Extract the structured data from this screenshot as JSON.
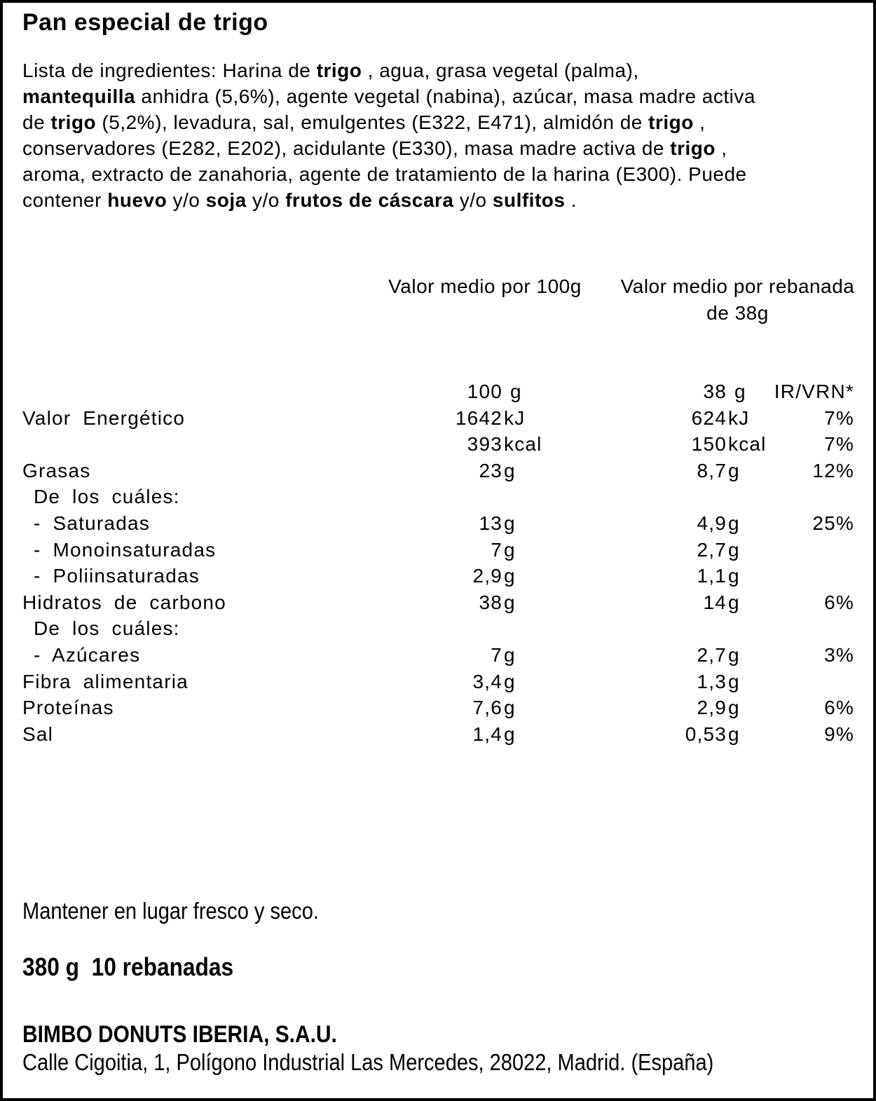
{
  "label": {
    "title": "Pan especial de trigo",
    "ingredients_lines": [
      [
        {
          "t": "Lista de ingredientes: Harina de ",
          "b": 0
        },
        {
          "t": "trigo",
          "b": 1
        },
        {
          "t": " , agua, grasa vegetal (palma),",
          "b": 0
        }
      ],
      [
        {
          "t": "mantequilla",
          "b": 1
        },
        {
          "t": " anhidra (5,6%), agente vegetal (nabina), azúcar, masa madre activa",
          "b": 0
        }
      ],
      [
        {
          "t": "de ",
          "b": 0
        },
        {
          "t": "trigo",
          "b": 1
        },
        {
          "t": " (5,2%), levadura, sal, emulgentes (E322, E471), almidón de ",
          "b": 0
        },
        {
          "t": "trigo",
          "b": 1
        },
        {
          "t": " ,",
          "b": 0
        }
      ],
      [
        {
          "t": "conservadores (E282, E202), acidulante (E330), masa madre activa de ",
          "b": 0
        },
        {
          "t": "trigo",
          "b": 1
        },
        {
          "t": " ,",
          "b": 0
        }
      ],
      [
        {
          "t": "aroma, extracto de zanahoria, agente de tratamiento de la harina (E300). Puede",
          "b": 0
        }
      ],
      [
        {
          "t": "contener ",
          "b": 0
        },
        {
          "t": "huevo",
          "b": 1
        },
        {
          "t": " y/o ",
          "b": 0
        },
        {
          "t": "soja",
          "b": 1
        },
        {
          "t": " y/o ",
          "b": 0
        },
        {
          "t": "frutos de cáscara",
          "b": 1
        },
        {
          "t": " y/o ",
          "b": 0
        },
        {
          "t": "sulfitos",
          "b": 1
        },
        {
          "t": " .",
          "b": 0
        }
      ]
    ],
    "nutrition": {
      "header_per_100": "Valor medio por 100g",
      "header_per_slice_line1": "Valor medio por rebanada",
      "header_per_slice_line2": "de 38g",
      "rows": [
        {
          "label": "",
          "indent": false,
          "n100": "100",
          "u100": " g",
          "n38": "38",
          "u38": " g",
          "pct": "IR/VRN*"
        },
        {
          "label": "Valor Energético",
          "indent": false,
          "n100": "1642",
          "u100": "kJ",
          "n38": "624",
          "u38": "kJ",
          "pct": "7%"
        },
        {
          "label": "",
          "indent": false,
          "n100": "393",
          "u100": "kcal",
          "n38": "150",
          "u38": "kcal",
          "pct": "7%"
        },
        {
          "label": "Grasas",
          "indent": false,
          "n100": "23",
          "u100": "g",
          "n38": "8,7",
          "u38": "g",
          "pct": "12%"
        },
        {
          "label": "De los cuáles:",
          "indent": true,
          "n100": "",
          "u100": "",
          "n38": "",
          "u38": "",
          "pct": ""
        },
        {
          "label": "- Saturadas",
          "indent": true,
          "n100": "13",
          "u100": "g",
          "n38": "4,9",
          "u38": "g",
          "pct": "25%"
        },
        {
          "label": "- Monoinsaturadas",
          "indent": true,
          "n100": "7",
          "u100": "g",
          "n38": "2,7",
          "u38": "g",
          "pct": ""
        },
        {
          "label": "- Poliinsaturadas",
          "indent": true,
          "n100": "2,9",
          "u100": "g",
          "n38": "1,1",
          "u38": "g",
          "pct": ""
        },
        {
          "label": "Hidratos de carbono",
          "indent": false,
          "n100": "38",
          "u100": "g",
          "n38": "14",
          "u38": "g",
          "pct": "6%"
        },
        {
          "label": "De los cuáles:",
          "indent": true,
          "n100": "",
          "u100": "",
          "n38": "",
          "u38": "",
          "pct": ""
        },
        {
          "label": "- Azúcares",
          "indent": true,
          "n100": "7",
          "u100": "g",
          "n38": "2,7",
          "u38": "g",
          "pct": "3%"
        },
        {
          "label": "Fibra alimentaria",
          "indent": false,
          "n100": "3,4",
          "u100": "g",
          "n38": "1,3",
          "u38": "g",
          "pct": ""
        },
        {
          "label": "Proteínas",
          "indent": false,
          "n100": "7,6",
          "u100": "g",
          "n38": "2,9",
          "u38": "g",
          "pct": "6%"
        },
        {
          "label": "Sal",
          "indent": false,
          "n100": "1,4",
          "u100": "g",
          "n38": "0,53",
          "u38": "g",
          "pct": "9%"
        }
      ]
    },
    "storage": "Mantener en lugar fresco y seco.",
    "weight": "380 g  10 rebanadas",
    "company": "BIMBO DONUTS IBERIA, S.A.U.",
    "address": "Calle Cigoitia, 1, Polígono Industrial Las Mercedes, 28022, Madrid. (España)"
  }
}
